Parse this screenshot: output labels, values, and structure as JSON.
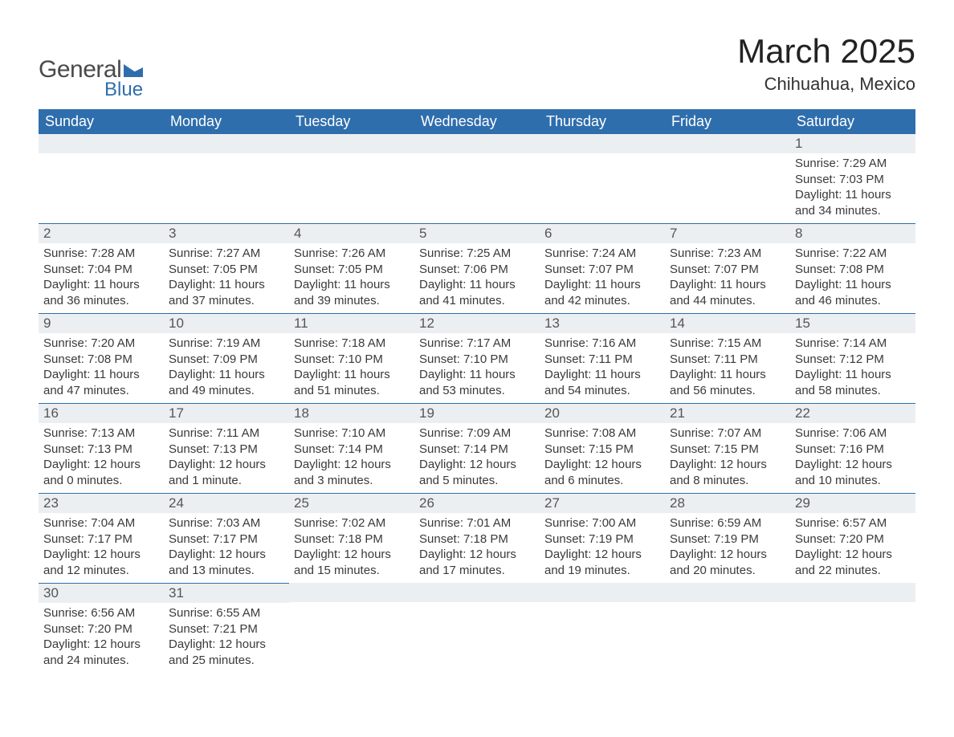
{
  "logo": {
    "text1": "General",
    "text2": "Blue",
    "accent": "#2f6ead",
    "text_color": "#4a4a4a"
  },
  "title": "March 2025",
  "location": "Chihuahua, Mexico",
  "header_bg": "#2f6ead",
  "strip_bg": "#eceff1",
  "strip_border": "#2f6ead",
  "day_names": [
    "Sunday",
    "Monday",
    "Tuesday",
    "Wednesday",
    "Thursday",
    "Friday",
    "Saturday"
  ],
  "weeks": [
    [
      {
        "n": "",
        "empty": true
      },
      {
        "n": "",
        "empty": true
      },
      {
        "n": "",
        "empty": true
      },
      {
        "n": "",
        "empty": true
      },
      {
        "n": "",
        "empty": true
      },
      {
        "n": "",
        "empty": true
      },
      {
        "n": "1",
        "sunrise": "Sunrise: 7:29 AM",
        "sunset": "Sunset: 7:03 PM",
        "d1": "Daylight: 11 hours",
        "d2": "and 34 minutes."
      }
    ],
    [
      {
        "n": "2",
        "sunrise": "Sunrise: 7:28 AM",
        "sunset": "Sunset: 7:04 PM",
        "d1": "Daylight: 11 hours",
        "d2": "and 36 minutes."
      },
      {
        "n": "3",
        "sunrise": "Sunrise: 7:27 AM",
        "sunset": "Sunset: 7:05 PM",
        "d1": "Daylight: 11 hours",
        "d2": "and 37 minutes."
      },
      {
        "n": "4",
        "sunrise": "Sunrise: 7:26 AM",
        "sunset": "Sunset: 7:05 PM",
        "d1": "Daylight: 11 hours",
        "d2": "and 39 minutes."
      },
      {
        "n": "5",
        "sunrise": "Sunrise: 7:25 AM",
        "sunset": "Sunset: 7:06 PM",
        "d1": "Daylight: 11 hours",
        "d2": "and 41 minutes."
      },
      {
        "n": "6",
        "sunrise": "Sunrise: 7:24 AM",
        "sunset": "Sunset: 7:07 PM",
        "d1": "Daylight: 11 hours",
        "d2": "and 42 minutes."
      },
      {
        "n": "7",
        "sunrise": "Sunrise: 7:23 AM",
        "sunset": "Sunset: 7:07 PM",
        "d1": "Daylight: 11 hours",
        "d2": "and 44 minutes."
      },
      {
        "n": "8",
        "sunrise": "Sunrise: 7:22 AM",
        "sunset": "Sunset: 7:08 PM",
        "d1": "Daylight: 11 hours",
        "d2": "and 46 minutes."
      }
    ],
    [
      {
        "n": "9",
        "sunrise": "Sunrise: 7:20 AM",
        "sunset": "Sunset: 7:08 PM",
        "d1": "Daylight: 11 hours",
        "d2": "and 47 minutes."
      },
      {
        "n": "10",
        "sunrise": "Sunrise: 7:19 AM",
        "sunset": "Sunset: 7:09 PM",
        "d1": "Daylight: 11 hours",
        "d2": "and 49 minutes."
      },
      {
        "n": "11",
        "sunrise": "Sunrise: 7:18 AM",
        "sunset": "Sunset: 7:10 PM",
        "d1": "Daylight: 11 hours",
        "d2": "and 51 minutes."
      },
      {
        "n": "12",
        "sunrise": "Sunrise: 7:17 AM",
        "sunset": "Sunset: 7:10 PM",
        "d1": "Daylight: 11 hours",
        "d2": "and 53 minutes."
      },
      {
        "n": "13",
        "sunrise": "Sunrise: 7:16 AM",
        "sunset": "Sunset: 7:11 PM",
        "d1": "Daylight: 11 hours",
        "d2": "and 54 minutes."
      },
      {
        "n": "14",
        "sunrise": "Sunrise: 7:15 AM",
        "sunset": "Sunset: 7:11 PM",
        "d1": "Daylight: 11 hours",
        "d2": "and 56 minutes."
      },
      {
        "n": "15",
        "sunrise": "Sunrise: 7:14 AM",
        "sunset": "Sunset: 7:12 PM",
        "d1": "Daylight: 11 hours",
        "d2": "and 58 minutes."
      }
    ],
    [
      {
        "n": "16",
        "sunrise": "Sunrise: 7:13 AM",
        "sunset": "Sunset: 7:13 PM",
        "d1": "Daylight: 12 hours",
        "d2": "and 0 minutes."
      },
      {
        "n": "17",
        "sunrise": "Sunrise: 7:11 AM",
        "sunset": "Sunset: 7:13 PM",
        "d1": "Daylight: 12 hours",
        "d2": "and 1 minute."
      },
      {
        "n": "18",
        "sunrise": "Sunrise: 7:10 AM",
        "sunset": "Sunset: 7:14 PM",
        "d1": "Daylight: 12 hours",
        "d2": "and 3 minutes."
      },
      {
        "n": "19",
        "sunrise": "Sunrise: 7:09 AM",
        "sunset": "Sunset: 7:14 PM",
        "d1": "Daylight: 12 hours",
        "d2": "and 5 minutes."
      },
      {
        "n": "20",
        "sunrise": "Sunrise: 7:08 AM",
        "sunset": "Sunset: 7:15 PM",
        "d1": "Daylight: 12 hours",
        "d2": "and 6 minutes."
      },
      {
        "n": "21",
        "sunrise": "Sunrise: 7:07 AM",
        "sunset": "Sunset: 7:15 PM",
        "d1": "Daylight: 12 hours",
        "d2": "and 8 minutes."
      },
      {
        "n": "22",
        "sunrise": "Sunrise: 7:06 AM",
        "sunset": "Sunset: 7:16 PM",
        "d1": "Daylight: 12 hours",
        "d2": "and 10 minutes."
      }
    ],
    [
      {
        "n": "23",
        "sunrise": "Sunrise: 7:04 AM",
        "sunset": "Sunset: 7:17 PM",
        "d1": "Daylight: 12 hours",
        "d2": "and 12 minutes."
      },
      {
        "n": "24",
        "sunrise": "Sunrise: 7:03 AM",
        "sunset": "Sunset: 7:17 PM",
        "d1": "Daylight: 12 hours",
        "d2": "and 13 minutes."
      },
      {
        "n": "25",
        "sunrise": "Sunrise: 7:02 AM",
        "sunset": "Sunset: 7:18 PM",
        "d1": "Daylight: 12 hours",
        "d2": "and 15 minutes."
      },
      {
        "n": "26",
        "sunrise": "Sunrise: 7:01 AM",
        "sunset": "Sunset: 7:18 PM",
        "d1": "Daylight: 12 hours",
        "d2": "and 17 minutes."
      },
      {
        "n": "27",
        "sunrise": "Sunrise: 7:00 AM",
        "sunset": "Sunset: 7:19 PM",
        "d1": "Daylight: 12 hours",
        "d2": "and 19 minutes."
      },
      {
        "n": "28",
        "sunrise": "Sunrise: 6:59 AM",
        "sunset": "Sunset: 7:19 PM",
        "d1": "Daylight: 12 hours",
        "d2": "and 20 minutes."
      },
      {
        "n": "29",
        "sunrise": "Sunrise: 6:57 AM",
        "sunset": "Sunset: 7:20 PM",
        "d1": "Daylight: 12 hours",
        "d2": "and 22 minutes."
      }
    ],
    [
      {
        "n": "30",
        "sunrise": "Sunrise: 6:56 AM",
        "sunset": "Sunset: 7:20 PM",
        "d1": "Daylight: 12 hours",
        "d2": "and 24 minutes."
      },
      {
        "n": "31",
        "sunrise": "Sunrise: 6:55 AM",
        "sunset": "Sunset: 7:21 PM",
        "d1": "Daylight: 12 hours",
        "d2": "and 25 minutes."
      },
      {
        "n": "",
        "empty": true,
        "trailing": true
      },
      {
        "n": "",
        "empty": true,
        "trailing": true
      },
      {
        "n": "",
        "empty": true,
        "trailing": true
      },
      {
        "n": "",
        "empty": true,
        "trailing": true
      },
      {
        "n": "",
        "empty": true,
        "trailing": true
      }
    ]
  ]
}
